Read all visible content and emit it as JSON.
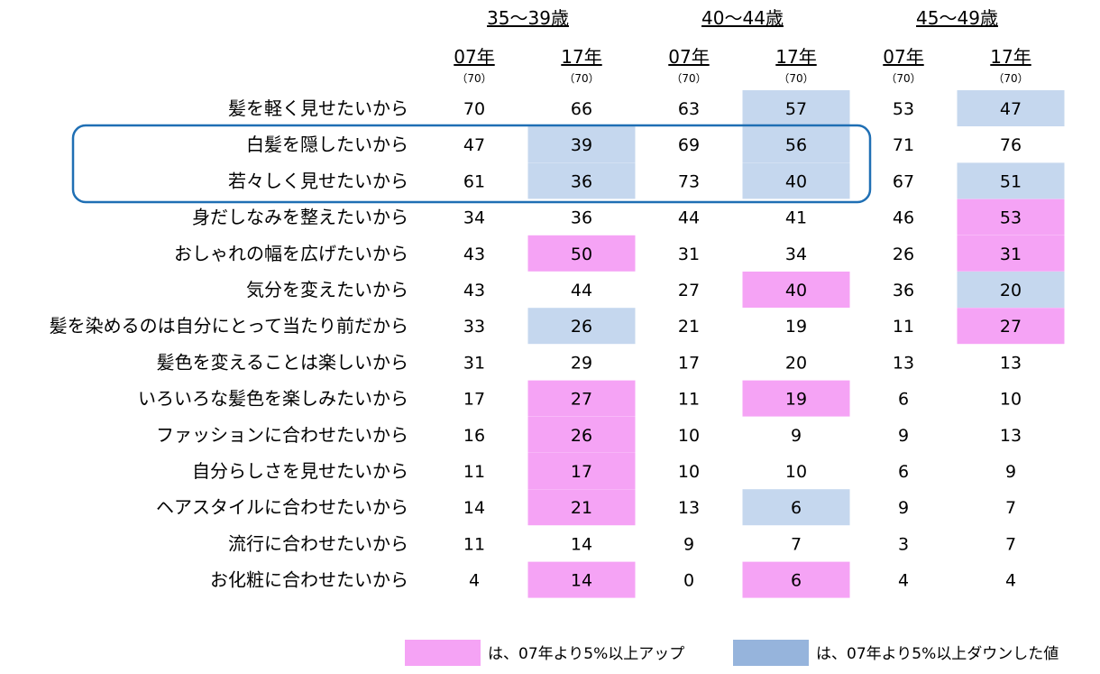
{
  "chart_data": {
    "type": "table",
    "age_groups": [
      "35～39歳",
      "40～44歳",
      "45～49歳"
    ],
    "columns": [
      {
        "year": "07年",
        "n": "（70）",
        "group": 0
      },
      {
        "year": "17年",
        "n": "（70）",
        "group": 0
      },
      {
        "year": "07年",
        "n": "（70）",
        "group": 1
      },
      {
        "year": "17年",
        "n": "（70）",
        "group": 1
      },
      {
        "year": "07年",
        "n": "（70）",
        "group": 2
      },
      {
        "year": "17年",
        "n": "（70）",
        "group": 2
      }
    ],
    "rows": [
      {
        "label": "髪を軽く見せたいから",
        "values": [
          70,
          66,
          63,
          57,
          53,
          47
        ],
        "highlight": [
          null,
          null,
          null,
          "down",
          null,
          "down"
        ]
      },
      {
        "label": "白髪を隠したいから",
        "values": [
          47,
          39,
          69,
          56,
          71,
          76
        ],
        "highlight": [
          null,
          "down",
          null,
          "down",
          null,
          null
        ]
      },
      {
        "label": "若々しく見せたいから",
        "values": [
          61,
          36,
          73,
          40,
          67,
          51
        ],
        "highlight": [
          null,
          "down",
          null,
          "down",
          null,
          "down"
        ]
      },
      {
        "label": "身だしなみを整えたいから",
        "values": [
          34,
          36,
          44,
          41,
          46,
          53
        ],
        "highlight": [
          null,
          null,
          null,
          null,
          null,
          "up"
        ]
      },
      {
        "label": "おしゃれの幅を広げたいから",
        "values": [
          43,
          50,
          31,
          34,
          26,
          31
        ],
        "highlight": [
          null,
          "up",
          null,
          null,
          null,
          "up"
        ]
      },
      {
        "label": "気分を変えたいから",
        "values": [
          43,
          44,
          27,
          40,
          36,
          20
        ],
        "highlight": [
          null,
          null,
          null,
          "up",
          null,
          "down"
        ]
      },
      {
        "label": "髪を染めるのは自分にとって当たり前だから",
        "values": [
          33,
          26,
          21,
          19,
          11,
          27
        ],
        "highlight": [
          null,
          "down",
          null,
          null,
          null,
          "up"
        ]
      },
      {
        "label": "髪色を変えることは楽しいから",
        "values": [
          31,
          29,
          17,
          20,
          13,
          13
        ],
        "highlight": [
          null,
          null,
          null,
          null,
          null,
          null
        ]
      },
      {
        "label": "いろいろな髪色を楽しみたいから",
        "values": [
          17,
          27,
          11,
          19,
          6,
          10
        ],
        "highlight": [
          null,
          "up",
          null,
          "up",
          null,
          null
        ]
      },
      {
        "label": "ファッションに合わせたいから",
        "values": [
          16,
          26,
          10,
          9,
          9,
          13
        ],
        "highlight": [
          null,
          "up",
          null,
          null,
          null,
          null
        ]
      },
      {
        "label": "自分らしさを見せたいから",
        "values": [
          11,
          17,
          10,
          10,
          6,
          9
        ],
        "highlight": [
          null,
          "up",
          null,
          null,
          null,
          null
        ]
      },
      {
        "label": "ヘアスタイルに合わせたいから",
        "values": [
          14,
          21,
          13,
          6,
          9,
          7
        ],
        "highlight": [
          null,
          "up",
          null,
          "down",
          null,
          null
        ]
      },
      {
        "label": "流行に合わせたいから",
        "values": [
          11,
          14,
          9,
          7,
          3,
          7
        ],
        "highlight": [
          null,
          null,
          null,
          null,
          null,
          null
        ]
      },
      {
        "label": "お化粧に合わせたいから",
        "values": [
          4,
          14,
          0,
          6,
          4,
          4
        ],
        "highlight": [
          null,
          "up",
          null,
          "up",
          null,
          null
        ]
      }
    ],
    "highlighted_row_group": [
      1,
      2
    ],
    "legend": [
      {
        "key": "up",
        "label": "は、07年より5%以上アップ",
        "color": "#f5a3f5"
      },
      {
        "key": "down",
        "label": "は、07年より5%以上ダウンした値",
        "color": "#96b4dc"
      }
    ],
    "cell_colors": {
      "up": "#f5a3f5",
      "down": "#c5d7ee"
    }
  }
}
